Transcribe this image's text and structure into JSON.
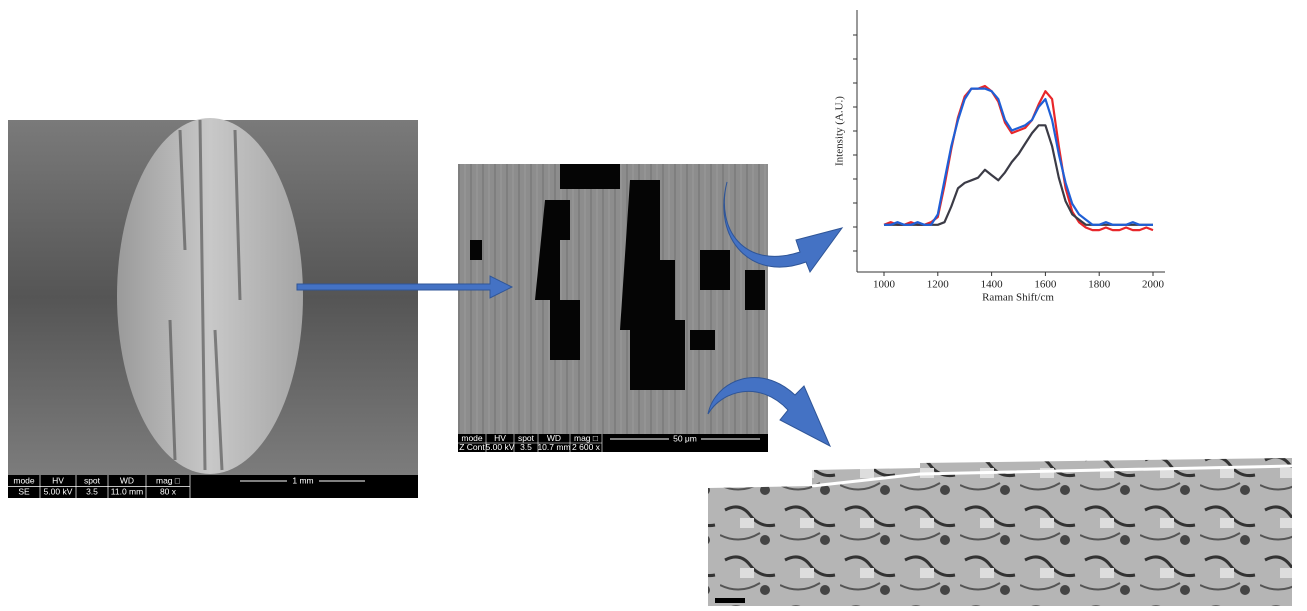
{
  "sem_overview": {
    "databar": {
      "headers": [
        "mode",
        "HV",
        "spot",
        "WD",
        "mag □"
      ],
      "values": [
        "SE",
        "5.00 kV",
        "3.5",
        "11.0 mm",
        "80 x"
      ],
      "scale": "1 mm"
    }
  },
  "sem_detail": {
    "databar": {
      "headers": [
        "mode",
        "HV",
        "spot",
        "WD",
        "mag □"
      ],
      "values": [
        "Z Cont",
        "5.00 kV",
        "3.5",
        "10.7 mm",
        "2 600 x"
      ],
      "scale": "50 μm"
    }
  },
  "chart_data": {
    "type": "line",
    "xlabel": "Raman Shift/cm",
    "ylabel": "Intensity (A.U.)",
    "x": [
      1000,
      1025,
      1050,
      1075,
      1100,
      1125,
      1150,
      1175,
      1200,
      1225,
      1250,
      1275,
      1300,
      1325,
      1350,
      1375,
      1400,
      1425,
      1450,
      1475,
      1500,
      1525,
      1550,
      1575,
      1600,
      1625,
      1650,
      1675,
      1700,
      1725,
      1750,
      1775,
      1800,
      1825,
      1850,
      1875,
      1900,
      1925,
      1950,
      1975,
      2000
    ],
    "series": [
      {
        "color": "#e8262a",
        "values": [
          1.8,
          1.9,
          1.8,
          1.8,
          1.9,
          1.8,
          1.8,
          1.9,
          2.1,
          3.3,
          4.7,
          5.9,
          6.7,
          7.0,
          7.0,
          7.1,
          6.9,
          6.5,
          5.7,
          5.3,
          5.4,
          5.5,
          5.8,
          6.4,
          6.9,
          6.6,
          4.8,
          3.2,
          2.3,
          1.9,
          1.7,
          1.6,
          1.6,
          1.7,
          1.6,
          1.6,
          1.7,
          1.6,
          1.6,
          1.7,
          1.6
        ]
      },
      {
        "color": "#3b3b46",
        "values": [
          1.8,
          1.8,
          1.8,
          1.8,
          1.8,
          1.8,
          1.8,
          1.8,
          1.8,
          1.9,
          2.5,
          3.2,
          3.4,
          3.5,
          3.6,
          3.9,
          3.7,
          3.5,
          3.8,
          4.2,
          4.5,
          4.9,
          5.3,
          5.6,
          5.6,
          4.8,
          3.6,
          2.7,
          2.2,
          2.0,
          1.8,
          1.8,
          1.8,
          1.8,
          1.8,
          1.8,
          1.8,
          1.8,
          1.8,
          1.8,
          1.8
        ]
      },
      {
        "color": "#1f5fd6",
        "values": [
          1.8,
          1.8,
          1.9,
          1.8,
          1.8,
          1.9,
          1.8,
          1.8,
          2.2,
          3.5,
          4.8,
          5.8,
          6.6,
          7.0,
          7.0,
          7.0,
          6.9,
          6.6,
          5.8,
          5.4,
          5.5,
          5.6,
          5.8,
          6.3,
          6.6,
          5.8,
          4.5,
          3.4,
          2.6,
          2.2,
          2.0,
          1.8,
          1.8,
          1.9,
          1.8,
          1.8,
          1.8,
          1.9,
          1.8,
          1.8,
          1.8
        ]
      }
    ],
    "xlim": [
      1000,
      2000
    ],
    "xticks": [
      1000,
      1200,
      1400,
      1600,
      1800,
      2000
    ],
    "ylim": [
      0,
      10
    ]
  }
}
